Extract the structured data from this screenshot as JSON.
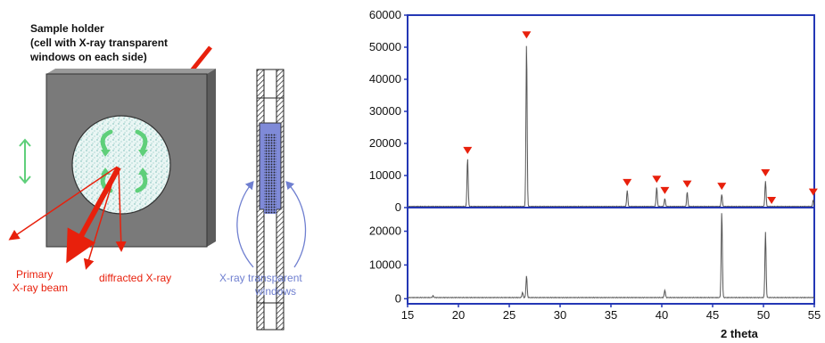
{
  "diagram": {
    "sample_holder_label": [
      "Sample holder",
      "(cell with X-ray transparent",
      "windows on each side)"
    ],
    "primary_beam_label": [
      "Primary",
      "X-ray beam"
    ],
    "diffracted_label": "diffracted X-ray",
    "windows_label": [
      "X-ray transparent",
      "windows"
    ],
    "colors": {
      "beam": "#e8200c",
      "window_text": "#6f7fd0",
      "holder": "#7a7a7a",
      "arrows": "#5fcf7a"
    }
  },
  "chart_data": [
    {
      "type": "line",
      "xlabel": "2 theta",
      "xlim": [
        15,
        55
      ],
      "xticks": [
        "15",
        "20",
        "25",
        "30",
        "35",
        "40",
        "45",
        "50",
        "55"
      ],
      "ylim": [
        0,
        60000
      ],
      "yticks": [
        "0",
        "10000",
        "20000",
        "30000",
        "40000",
        "50000",
        "60000"
      ],
      "series": [
        {
          "color": "#555555",
          "peaks": [
            [
              20.9,
              15000
            ],
            [
              26.7,
              51000
            ],
            [
              36.6,
              5000
            ],
            [
              39.5,
              6000
            ],
            [
              40.3,
              2500
            ],
            [
              42.5,
              4500
            ],
            [
              45.9,
              3800
            ],
            [
              50.2,
              8000
            ],
            [
              54.9,
              2000
            ]
          ]
        }
      ],
      "markers": {
        "color": "#e8200c",
        "x": [
          20.9,
          26.7,
          36.6,
          39.5,
          40.3,
          42.5,
          45.9,
          50.2,
          50.8,
          54.9
        ]
      }
    },
    {
      "type": "line",
      "xlabel": "2 theta",
      "xlim": [
        15,
        55
      ],
      "ylim": [
        -1500,
        27000
      ],
      "yticks": [
        "0",
        "10000",
        "20000"
      ],
      "series": [
        {
          "color": "#555555",
          "peaks": [
            [
              17.5,
              500
            ],
            [
              26.3,
              1500
            ],
            [
              26.7,
              6500
            ],
            [
              40.3,
              2200
            ],
            [
              45.9,
              25500
            ],
            [
              50.2,
              19500
            ]
          ]
        }
      ]
    }
  ]
}
